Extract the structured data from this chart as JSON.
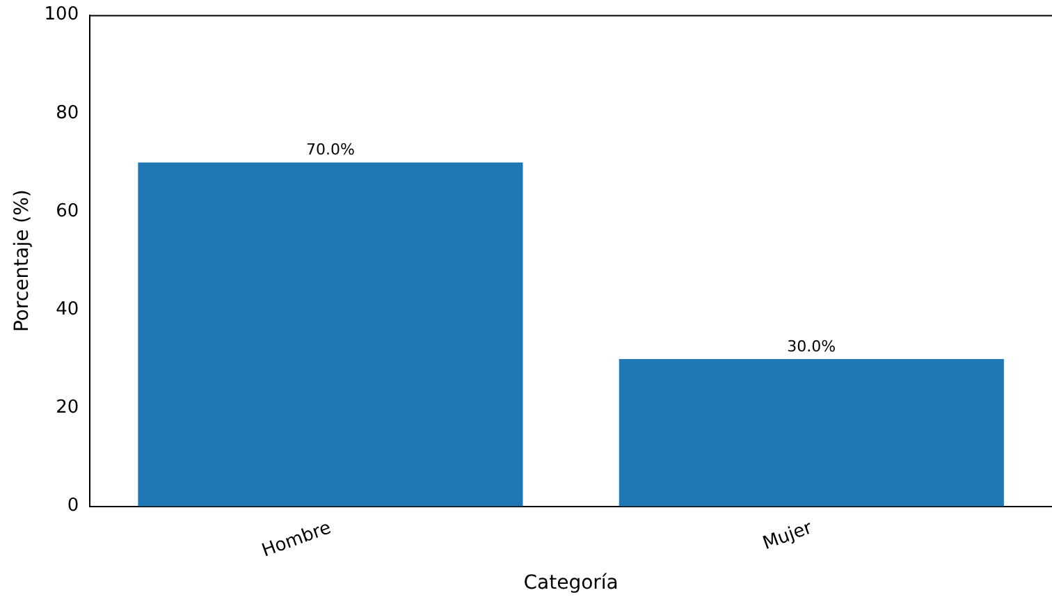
{
  "chart_data": {
    "type": "bar",
    "xlabel": "Categoría",
    "ylabel": "Porcentaje (%)",
    "categories": [
      "Hombre",
      "Mujer"
    ],
    "values": [
      70,
      30
    ],
    "value_labels": [
      "70.0%",
      "30.0%"
    ],
    "color": "#1f77b4",
    "ylim": [
      0,
      100
    ],
    "yticks": [
      0,
      20,
      40,
      60,
      80,
      100
    ],
    "grid": false,
    "legend": false
  }
}
